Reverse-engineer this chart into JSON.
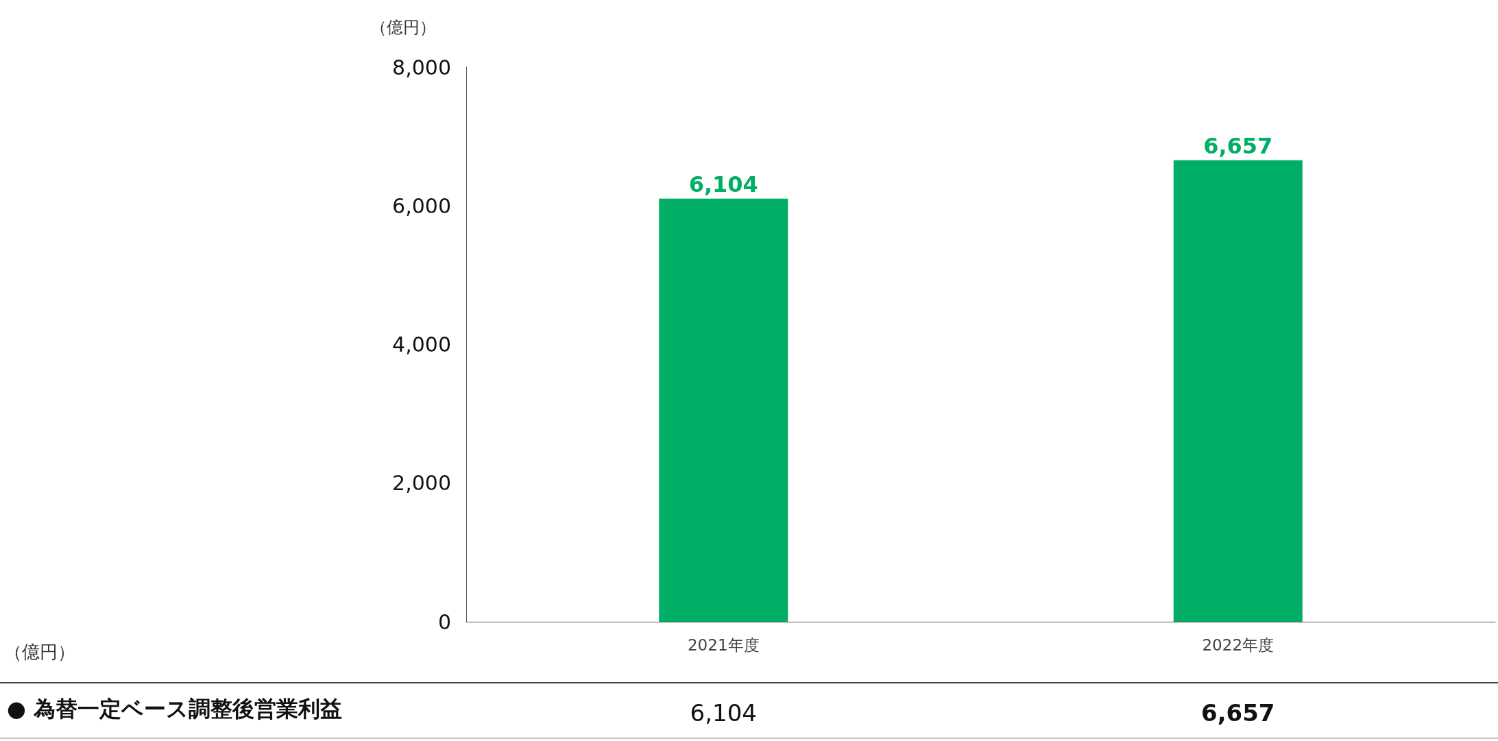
{
  "chart_data": {
    "type": "bar",
    "ylabel": "（億円）",
    "categories": [
      "2021年度",
      "2022年度"
    ],
    "series": [
      {
        "name": "● 為替一定ベース調整後営業利益",
        "color": "#00ae65",
        "values": [
          6104,
          6657
        ],
        "value_labels": [
          "6,104",
          "6,657"
        ]
      }
    ],
    "ylim": [
      0,
      8000
    ],
    "yticks": [
      {
        "value": 0,
        "label": "0"
      },
      {
        "value": 2000,
        "label": "2,000"
      },
      {
        "value": 4000,
        "label": "4,000"
      },
      {
        "value": 6000,
        "label": "6,000"
      },
      {
        "value": 8000,
        "label": "8,000"
      }
    ],
    "grid": false,
    "legend": false,
    "annotations": [
      "（億円）"
    ]
  }
}
